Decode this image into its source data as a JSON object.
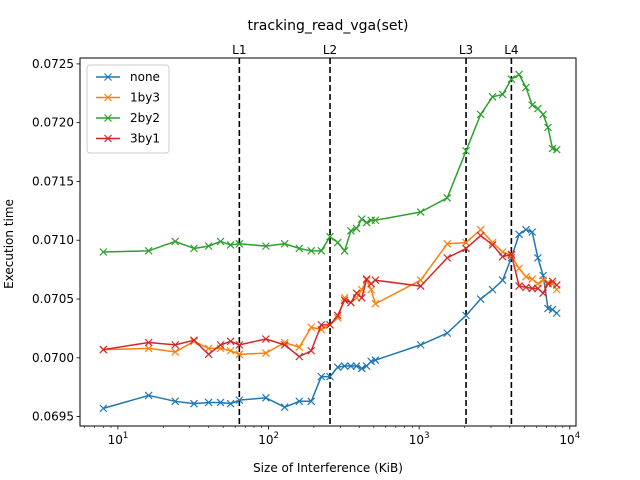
{
  "chart_data": {
    "type": "line",
    "title": "tracking_read_vga(set)",
    "xlabel": "Size of Interference (KiB)",
    "ylabel": "Execution time",
    "xscale": "log",
    "xlim": [
      5.6,
      11000
    ],
    "ylim": [
      0.06942,
      0.07255
    ],
    "xticks": [
      {
        "value": 10,
        "base": "10",
        "exp": "1"
      },
      {
        "value": 100,
        "base": "10",
        "exp": "2"
      },
      {
        "value": 1000,
        "base": "10",
        "exp": "3"
      },
      {
        "value": 10000,
        "base": "10",
        "exp": "4"
      }
    ],
    "yticks": [
      {
        "value": 0.0695,
        "label": "0.0695"
      },
      {
        "value": 0.07,
        "label": "0.0700"
      },
      {
        "value": 0.0705,
        "label": "0.0705"
      },
      {
        "value": 0.071,
        "label": "0.0710"
      },
      {
        "value": 0.0715,
        "label": "0.0715"
      },
      {
        "value": 0.072,
        "label": "0.0720"
      },
      {
        "value": 0.0725,
        "label": "0.0725"
      }
    ],
    "vlines": [
      {
        "label": "L1",
        "x": 64
      },
      {
        "label": "L2",
        "x": 256
      },
      {
        "label": "L3",
        "x": 2048
      },
      {
        "label": "L4",
        "x": 4096
      }
    ],
    "legend_position": "top-left",
    "grid": false,
    "series": [
      {
        "name": "none",
        "color": "#1f77b4",
        "x": [
          8,
          16,
          24,
          32,
          40,
          48,
          56,
          64,
          96,
          128,
          160,
          192,
          224,
          256,
          288,
          320,
          352,
          384,
          416,
          448,
          480,
          512,
          1024,
          1536,
          2048,
          2560,
          3072,
          3584,
          4096,
          4608,
          5120,
          5632,
          6144,
          6656,
          7168,
          7680,
          8192
        ],
        "y": [
          0.06957,
          0.06968,
          0.06963,
          0.06961,
          0.06962,
          0.06962,
          0.06961,
          0.06964,
          0.06966,
          0.06958,
          0.06963,
          0.06963,
          0.06984,
          0.06984,
          0.06992,
          0.06993,
          0.06993,
          0.06993,
          0.06991,
          0.06993,
          0.06997,
          0.06998,
          0.07011,
          0.07021,
          0.07036,
          0.0705,
          0.07058,
          0.07066,
          0.07085,
          0.07105,
          0.07109,
          0.07107,
          0.07085,
          0.0707,
          0.07042,
          0.07041,
          0.07038
        ]
      },
      {
        "name": "1by3",
        "color": "#ff7f0e",
        "x": [
          8,
          16,
          24,
          32,
          40,
          48,
          56,
          64,
          96,
          128,
          160,
          192,
          224,
          256,
          288,
          320,
          352,
          384,
          416,
          448,
          480,
          512,
          1024,
          1536,
          2048,
          2560,
          3072,
          3584,
          4096,
          4608,
          5120,
          5632,
          6144,
          6656,
          7168,
          7680,
          8192
        ],
        "y": [
          0.07007,
          0.07008,
          0.07005,
          0.07014,
          0.07008,
          0.07008,
          0.07006,
          0.07003,
          0.07004,
          0.07013,
          0.07009,
          0.07026,
          0.07024,
          0.07028,
          0.07034,
          0.07051,
          0.07047,
          0.07051,
          0.07058,
          0.07066,
          0.07058,
          0.07046,
          0.07066,
          0.07097,
          0.07098,
          0.07109,
          0.07098,
          0.0709,
          0.07087,
          0.07076,
          0.07069,
          0.07067,
          0.07063,
          0.07066,
          0.07064,
          0.07063,
          0.07058
        ]
      },
      {
        "name": "2by2",
        "color": "#2ca02c",
        "x": [
          8,
          16,
          24,
          32,
          40,
          48,
          56,
          64,
          96,
          128,
          160,
          192,
          224,
          256,
          288,
          320,
          352,
          384,
          416,
          448,
          480,
          512,
          1024,
          1536,
          2048,
          2560,
          3072,
          3584,
          4096,
          4608,
          5120,
          5632,
          6144,
          6656,
          7168,
          7680,
          8192
        ],
        "y": [
          0.0709,
          0.07091,
          0.07099,
          0.07093,
          0.07095,
          0.07099,
          0.07096,
          0.07097,
          0.07095,
          0.07097,
          0.07093,
          0.07091,
          0.07091,
          0.07103,
          0.07098,
          0.07091,
          0.07108,
          0.0711,
          0.07118,
          0.07115,
          0.07117,
          0.07117,
          0.07124,
          0.07136,
          0.07176,
          0.07207,
          0.07222,
          0.07224,
          0.07237,
          0.07241,
          0.0723,
          0.07215,
          0.07212,
          0.07207,
          0.07196,
          0.07178,
          0.07177
        ]
      },
      {
        "name": "3by1",
        "color": "#d62728",
        "x": [
          8,
          16,
          24,
          32,
          40,
          48,
          56,
          64,
          96,
          128,
          160,
          192,
          224,
          256,
          288,
          320,
          352,
          384,
          416,
          448,
          480,
          512,
          1024,
          1536,
          2048,
          2560,
          3072,
          3584,
          4096,
          4608,
          5120,
          5632,
          6144,
          6656,
          7168,
          7680,
          8192
        ],
        "y": [
          0.07007,
          0.07013,
          0.07011,
          0.07015,
          0.07003,
          0.07011,
          0.07014,
          0.07011,
          0.07016,
          0.07011,
          0.07001,
          0.07006,
          0.07028,
          0.07028,
          0.07036,
          0.07049,
          0.07047,
          0.07055,
          0.07051,
          0.07067,
          0.07063,
          0.07066,
          0.07061,
          0.07085,
          0.07093,
          0.07104,
          0.07096,
          0.07086,
          0.07088,
          0.07061,
          0.0706,
          0.07059,
          0.07059,
          0.07055,
          0.07063,
          0.07065,
          0.07062
        ]
      }
    ]
  }
}
